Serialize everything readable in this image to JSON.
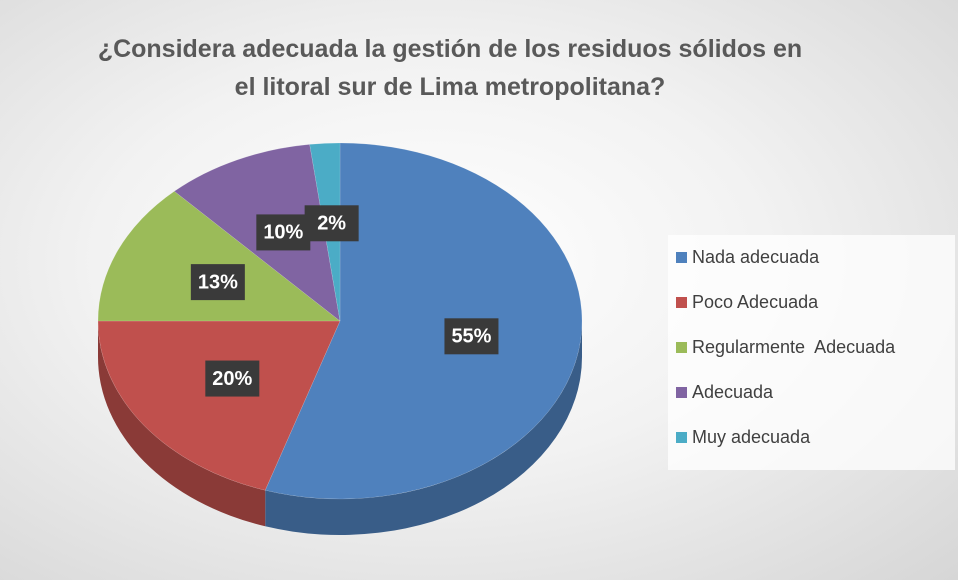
{
  "chart_data": {
    "type": "pie",
    "title": "¿Considera adecuada la gestión de los residuos sólidos en el litoral sur de Lima metropolitana?",
    "categories": [
      "Nada adecuada",
      "Poco Adecuada",
      "Regularmente  Adecuada",
      "Adecuada",
      "Muy adecuada"
    ],
    "values": [
      55,
      20,
      13,
      10,
      2
    ],
    "value_labels": [
      "55%",
      "20%",
      "13%",
      "10%",
      "2%"
    ],
    "colors": [
      "#4f81bd",
      "#c0504d",
      "#9bbb59",
      "#8064a2",
      "#4bacc6"
    ],
    "legend": "right"
  }
}
